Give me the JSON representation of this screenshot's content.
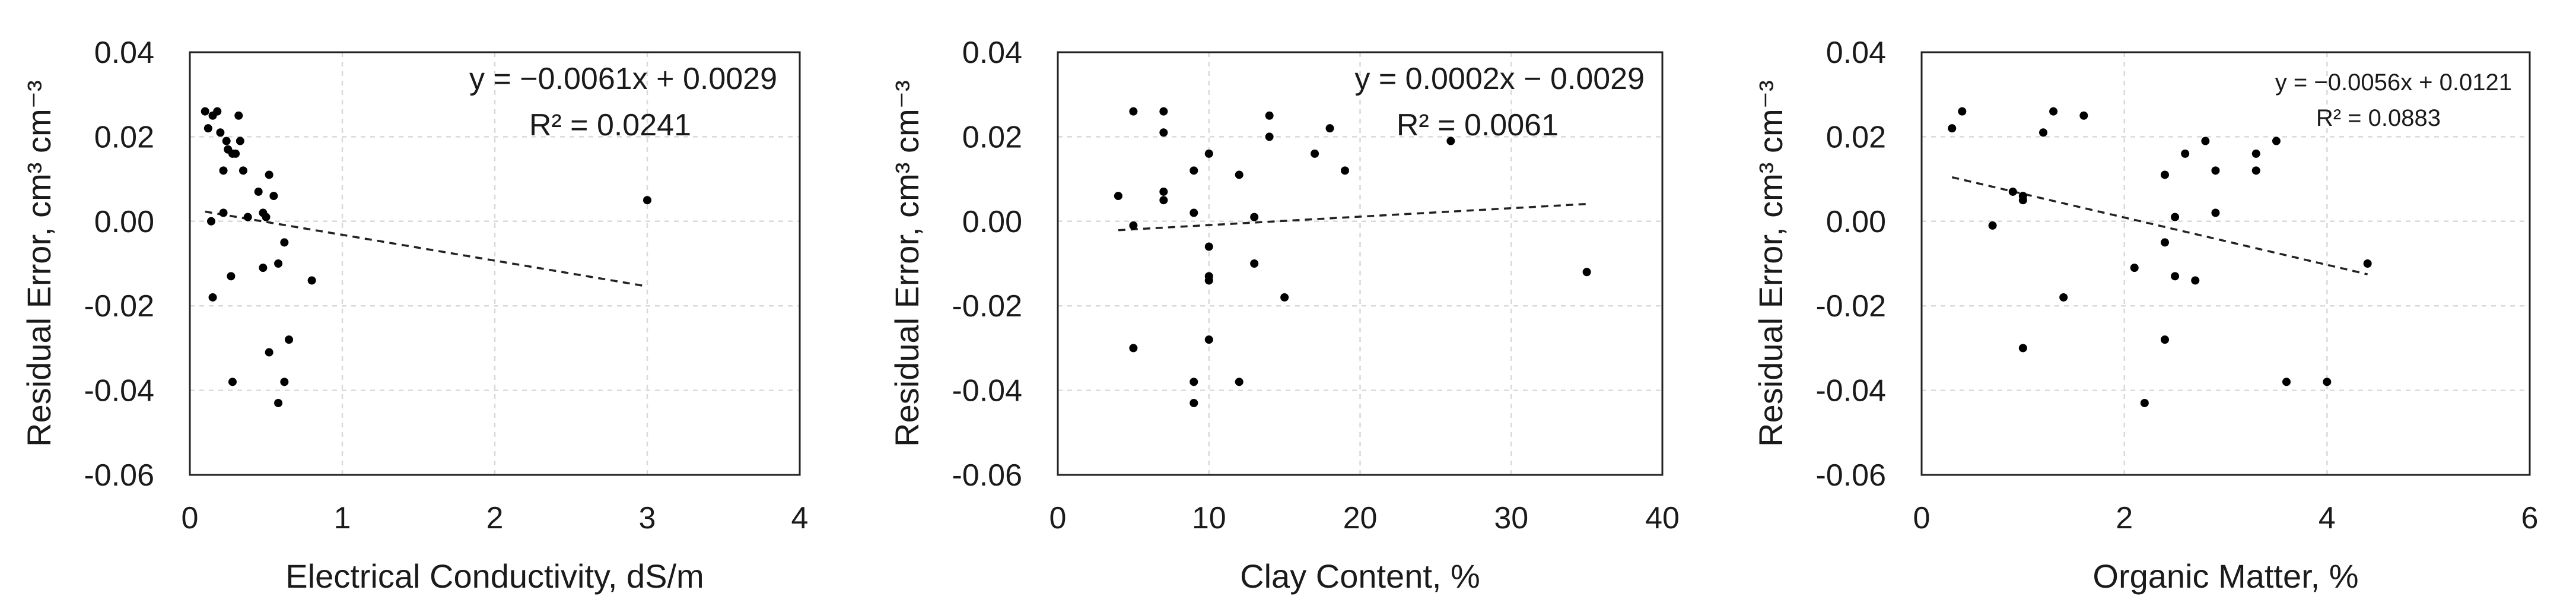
{
  "chart_data": [
    {
      "type": "scatter",
      "xlabel": "Electrical Conductivity, dS/m",
      "ylabel": "Residual Error, cm³ cm⁻³",
      "xlim": [
        0,
        4
      ],
      "ylim": [
        -0.06,
        0.04
      ],
      "xticks": [
        "0",
        "1",
        "2",
        "3",
        "4"
      ],
      "yticks": [
        "0.04",
        "0.02",
        "0.00",
        "-0.02",
        "-0.04",
        "-0.06"
      ],
      "grid": true,
      "equation": "y = −0.0061x + 0.0029",
      "r_squared": "R² = 0.0241",
      "trendline": {
        "slope": -0.0061,
        "intercept": 0.0029,
        "x_range": [
          0.1,
          3.0
        ]
      },
      "x": [
        0.1,
        0.12,
        0.14,
        0.15,
        0.18,
        0.2,
        0.22,
        0.24,
        0.25,
        0.28,
        0.3,
        0.32,
        0.33,
        0.35,
        0.22,
        0.38,
        0.45,
        0.48,
        0.52,
        0.55,
        0.5,
        0.48,
        0.62,
        0.58,
        0.27,
        0.15,
        0.8,
        0.65,
        0.52,
        0.28,
        0.62,
        0.58,
        3.0
      ],
      "y": [
        0.026,
        0.022,
        0.0,
        0.025,
        0.026,
        0.021,
        0.012,
        0.019,
        0.017,
        0.016,
        0.016,
        0.025,
        0.019,
        0.012,
        0.002,
        0.001,
        0.007,
        0.002,
        0.011,
        0.006,
        0.001,
        -0.011,
        -0.005,
        -0.01,
        -0.013,
        -0.018,
        -0.014,
        -0.028,
        -0.031,
        -0.038,
        -0.038,
        -0.043,
        0.005
      ]
    },
    {
      "type": "scatter",
      "xlabel": "Clay Content, %",
      "ylabel": "Residual Error, cm³ cm⁻³",
      "xlim": [
        0,
        40
      ],
      "ylim": [
        -0.06,
        0.04
      ],
      "xticks": [
        "0",
        "10",
        "20",
        "30",
        "40"
      ],
      "yticks": [
        "0.04",
        "0.02",
        "0.00",
        "-0.02",
        "-0.04",
        "-0.06"
      ],
      "grid": true,
      "equation": "y = 0.0002x − 0.0029",
      "r_squared": "R² = 0.0061",
      "trendline": {
        "slope": 0.0002,
        "intercept": -0.0029,
        "x_range": [
          4,
          35
        ]
      },
      "x": [
        4,
        5,
        5,
        7,
        7,
        7,
        7,
        9,
        9,
        9,
        9,
        10,
        10,
        10,
        10,
        10,
        12,
        12,
        13,
        13,
        14,
        14,
        15,
        17,
        18,
        19,
        26,
        35,
        5
      ],
      "y": [
        0.006,
        -0.001,
        0.026,
        0.026,
        0.021,
        0.007,
        0.005,
        0.012,
        0.002,
        -0.038,
        -0.043,
        0.016,
        -0.006,
        -0.013,
        -0.014,
        -0.028,
        0.011,
        -0.038,
        0.001,
        -0.01,
        0.025,
        0.02,
        -0.018,
        0.016,
        0.022,
        0.012,
        0.019,
        -0.012,
        -0.03
      ]
    },
    {
      "type": "scatter",
      "xlabel": "Organic Matter, %",
      "ylabel": "Residual Error, cm³ cm⁻³",
      "xlim": [
        0,
        6
      ],
      "ylim": [
        -0.06,
        0.04
      ],
      "xticks": [
        "0",
        "2",
        "4",
        "6"
      ],
      "yticks": [
        "0.04",
        "0.02",
        "0.00",
        "-0.02",
        "-0.04",
        "-0.06"
      ],
      "grid": true,
      "equation": "y = −0.0056x + 0.0121",
      "r_squared": "R² = 0.0883",
      "trendline": {
        "slope": -0.0056,
        "intercept": 0.0121,
        "x_range": [
          0.3,
          4.4
        ]
      },
      "x": [
        0.3,
        0.4,
        0.7,
        0.9,
        1.0,
        1.0,
        1.0,
        1.2,
        1.3,
        1.4,
        1.6,
        2.1,
        2.2,
        2.4,
        2.4,
        2.4,
        2.5,
        2.5,
        2.6,
        2.7,
        2.8,
        2.9,
        2.9,
        3.3,
        3.3,
        3.5,
        3.6,
        4.0,
        4.4
      ],
      "y": [
        0.022,
        0.026,
        -0.001,
        0.007,
        0.006,
        0.005,
        -0.03,
        0.021,
        0.026,
        -0.018,
        0.025,
        -0.011,
        -0.043,
        0.011,
        -0.005,
        -0.028,
        0.001,
        -0.013,
        0.016,
        -0.014,
        0.019,
        0.012,
        0.002,
        0.016,
        0.012,
        0.019,
        -0.038,
        -0.038,
        -0.01
      ]
    }
  ]
}
